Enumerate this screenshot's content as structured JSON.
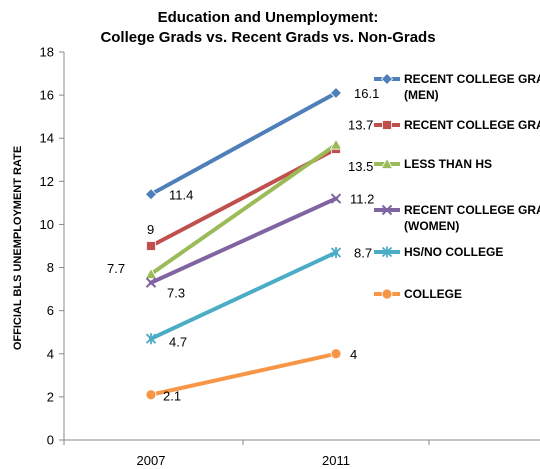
{
  "chart_data": {
    "type": "line",
    "title": [
      "Education and Unemployment:",
      "College Grads vs. Recent Grads vs. Non-Grads"
    ],
    "ylabel": "OFFICIAL BLS UNEMPLOYMENT RATE",
    "categories": [
      "2007",
      "2011"
    ],
    "ylim": [
      0,
      18
    ],
    "yticks": [
      "0",
      "2",
      "4",
      "6",
      "8",
      "10",
      "12",
      "14",
      "16",
      "18"
    ],
    "grid": false,
    "legend_position": "right",
    "series": [
      {
        "name": [
          "RECENT COLLEGE GRAD",
          "(MEN)"
        ],
        "values": [
          11.4,
          16.1
        ],
        "labels": [
          "11.4",
          "16.1"
        ],
        "color": "#4e7fb8",
        "marker": "diamond"
      },
      {
        "name": [
          "RECENT COLLEGE GRADS"
        ],
        "values": [
          9,
          13.5
        ],
        "labels": [
          "9",
          "13.5"
        ],
        "color": "#c0504d",
        "marker": "square"
      },
      {
        "name": [
          "LESS THAN HS"
        ],
        "values": [
          7.7,
          13.7
        ],
        "labels": [
          "7.7",
          "13.7"
        ],
        "color": "#9bbb59",
        "marker": "triangle"
      },
      {
        "name": [
          "RECENT COLLEGE GRADS",
          "(WOMEN)"
        ],
        "values": [
          7.3,
          11.2
        ],
        "labels": [
          "7.3",
          "11.2"
        ],
        "color": "#8064a2",
        "marker": "x"
      },
      {
        "name": [
          "HS/NO COLLEGE"
        ],
        "values": [
          4.7,
          8.7
        ],
        "labels": [
          "4.7",
          "8.7"
        ],
        "color": "#4bacc6",
        "marker": "star"
      },
      {
        "name": [
          "COLLEGE"
        ],
        "values": [
          2.1,
          4
        ],
        "labels": [
          "2.1",
          "4"
        ],
        "color": "#f79646",
        "marker": "circle"
      }
    ]
  }
}
